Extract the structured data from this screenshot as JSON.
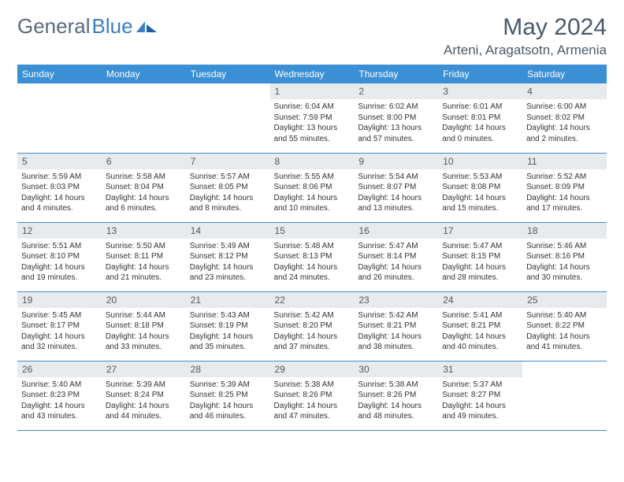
{
  "brand": {
    "part1": "General",
    "part2": "Blue"
  },
  "title": "May 2024",
  "location": "Arteni, Aragatsotn, Armenia",
  "colors": {
    "header_bg": "#3b8fd4",
    "header_text": "#ffffff",
    "daynum_bg": "#e8ebee",
    "border": "#3b8fd4",
    "brand_gray": "#5a6a7a",
    "brand_blue": "#3b7fc4"
  },
  "weekdays": [
    "Sunday",
    "Monday",
    "Tuesday",
    "Wednesday",
    "Thursday",
    "Friday",
    "Saturday"
  ],
  "grid": [
    [
      null,
      null,
      null,
      {
        "n": "1",
        "sunrise": "6:04 AM",
        "sunset": "7:59 PM",
        "daylight": "13 hours and 55 minutes."
      },
      {
        "n": "2",
        "sunrise": "6:02 AM",
        "sunset": "8:00 PM",
        "daylight": "13 hours and 57 minutes."
      },
      {
        "n": "3",
        "sunrise": "6:01 AM",
        "sunset": "8:01 PM",
        "daylight": "14 hours and 0 minutes."
      },
      {
        "n": "4",
        "sunrise": "6:00 AM",
        "sunset": "8:02 PM",
        "daylight": "14 hours and 2 minutes."
      }
    ],
    [
      {
        "n": "5",
        "sunrise": "5:59 AM",
        "sunset": "8:03 PM",
        "daylight": "14 hours and 4 minutes."
      },
      {
        "n": "6",
        "sunrise": "5:58 AM",
        "sunset": "8:04 PM",
        "daylight": "14 hours and 6 minutes."
      },
      {
        "n": "7",
        "sunrise": "5:57 AM",
        "sunset": "8:05 PM",
        "daylight": "14 hours and 8 minutes."
      },
      {
        "n": "8",
        "sunrise": "5:55 AM",
        "sunset": "8:06 PM",
        "daylight": "14 hours and 10 minutes."
      },
      {
        "n": "9",
        "sunrise": "5:54 AM",
        "sunset": "8:07 PM",
        "daylight": "14 hours and 13 minutes."
      },
      {
        "n": "10",
        "sunrise": "5:53 AM",
        "sunset": "8:08 PM",
        "daylight": "14 hours and 15 minutes."
      },
      {
        "n": "11",
        "sunrise": "5:52 AM",
        "sunset": "8:09 PM",
        "daylight": "14 hours and 17 minutes."
      }
    ],
    [
      {
        "n": "12",
        "sunrise": "5:51 AM",
        "sunset": "8:10 PM",
        "daylight": "14 hours and 19 minutes."
      },
      {
        "n": "13",
        "sunrise": "5:50 AM",
        "sunset": "8:11 PM",
        "daylight": "14 hours and 21 minutes."
      },
      {
        "n": "14",
        "sunrise": "5:49 AM",
        "sunset": "8:12 PM",
        "daylight": "14 hours and 23 minutes."
      },
      {
        "n": "15",
        "sunrise": "5:48 AM",
        "sunset": "8:13 PM",
        "daylight": "14 hours and 24 minutes."
      },
      {
        "n": "16",
        "sunrise": "5:47 AM",
        "sunset": "8:14 PM",
        "daylight": "14 hours and 26 minutes."
      },
      {
        "n": "17",
        "sunrise": "5:47 AM",
        "sunset": "8:15 PM",
        "daylight": "14 hours and 28 minutes."
      },
      {
        "n": "18",
        "sunrise": "5:46 AM",
        "sunset": "8:16 PM",
        "daylight": "14 hours and 30 minutes."
      }
    ],
    [
      {
        "n": "19",
        "sunrise": "5:45 AM",
        "sunset": "8:17 PM",
        "daylight": "14 hours and 32 minutes."
      },
      {
        "n": "20",
        "sunrise": "5:44 AM",
        "sunset": "8:18 PM",
        "daylight": "14 hours and 33 minutes."
      },
      {
        "n": "21",
        "sunrise": "5:43 AM",
        "sunset": "8:19 PM",
        "daylight": "14 hours and 35 minutes."
      },
      {
        "n": "22",
        "sunrise": "5:42 AM",
        "sunset": "8:20 PM",
        "daylight": "14 hours and 37 minutes."
      },
      {
        "n": "23",
        "sunrise": "5:42 AM",
        "sunset": "8:21 PM",
        "daylight": "14 hours and 38 minutes."
      },
      {
        "n": "24",
        "sunrise": "5:41 AM",
        "sunset": "8:21 PM",
        "daylight": "14 hours and 40 minutes."
      },
      {
        "n": "25",
        "sunrise": "5:40 AM",
        "sunset": "8:22 PM",
        "daylight": "14 hours and 41 minutes."
      }
    ],
    [
      {
        "n": "26",
        "sunrise": "5:40 AM",
        "sunset": "8:23 PM",
        "daylight": "14 hours and 43 minutes."
      },
      {
        "n": "27",
        "sunrise": "5:39 AM",
        "sunset": "8:24 PM",
        "daylight": "14 hours and 44 minutes."
      },
      {
        "n": "28",
        "sunrise": "5:39 AM",
        "sunset": "8:25 PM",
        "daylight": "14 hours and 46 minutes."
      },
      {
        "n": "29",
        "sunrise": "5:38 AM",
        "sunset": "8:26 PM",
        "daylight": "14 hours and 47 minutes."
      },
      {
        "n": "30",
        "sunrise": "5:38 AM",
        "sunset": "8:26 PM",
        "daylight": "14 hours and 48 minutes."
      },
      {
        "n": "31",
        "sunrise": "5:37 AM",
        "sunset": "8:27 PM",
        "daylight": "14 hours and 49 minutes."
      },
      null
    ]
  ],
  "labels": {
    "sunrise": "Sunrise:",
    "sunset": "Sunset:",
    "daylight": "Daylight:"
  }
}
